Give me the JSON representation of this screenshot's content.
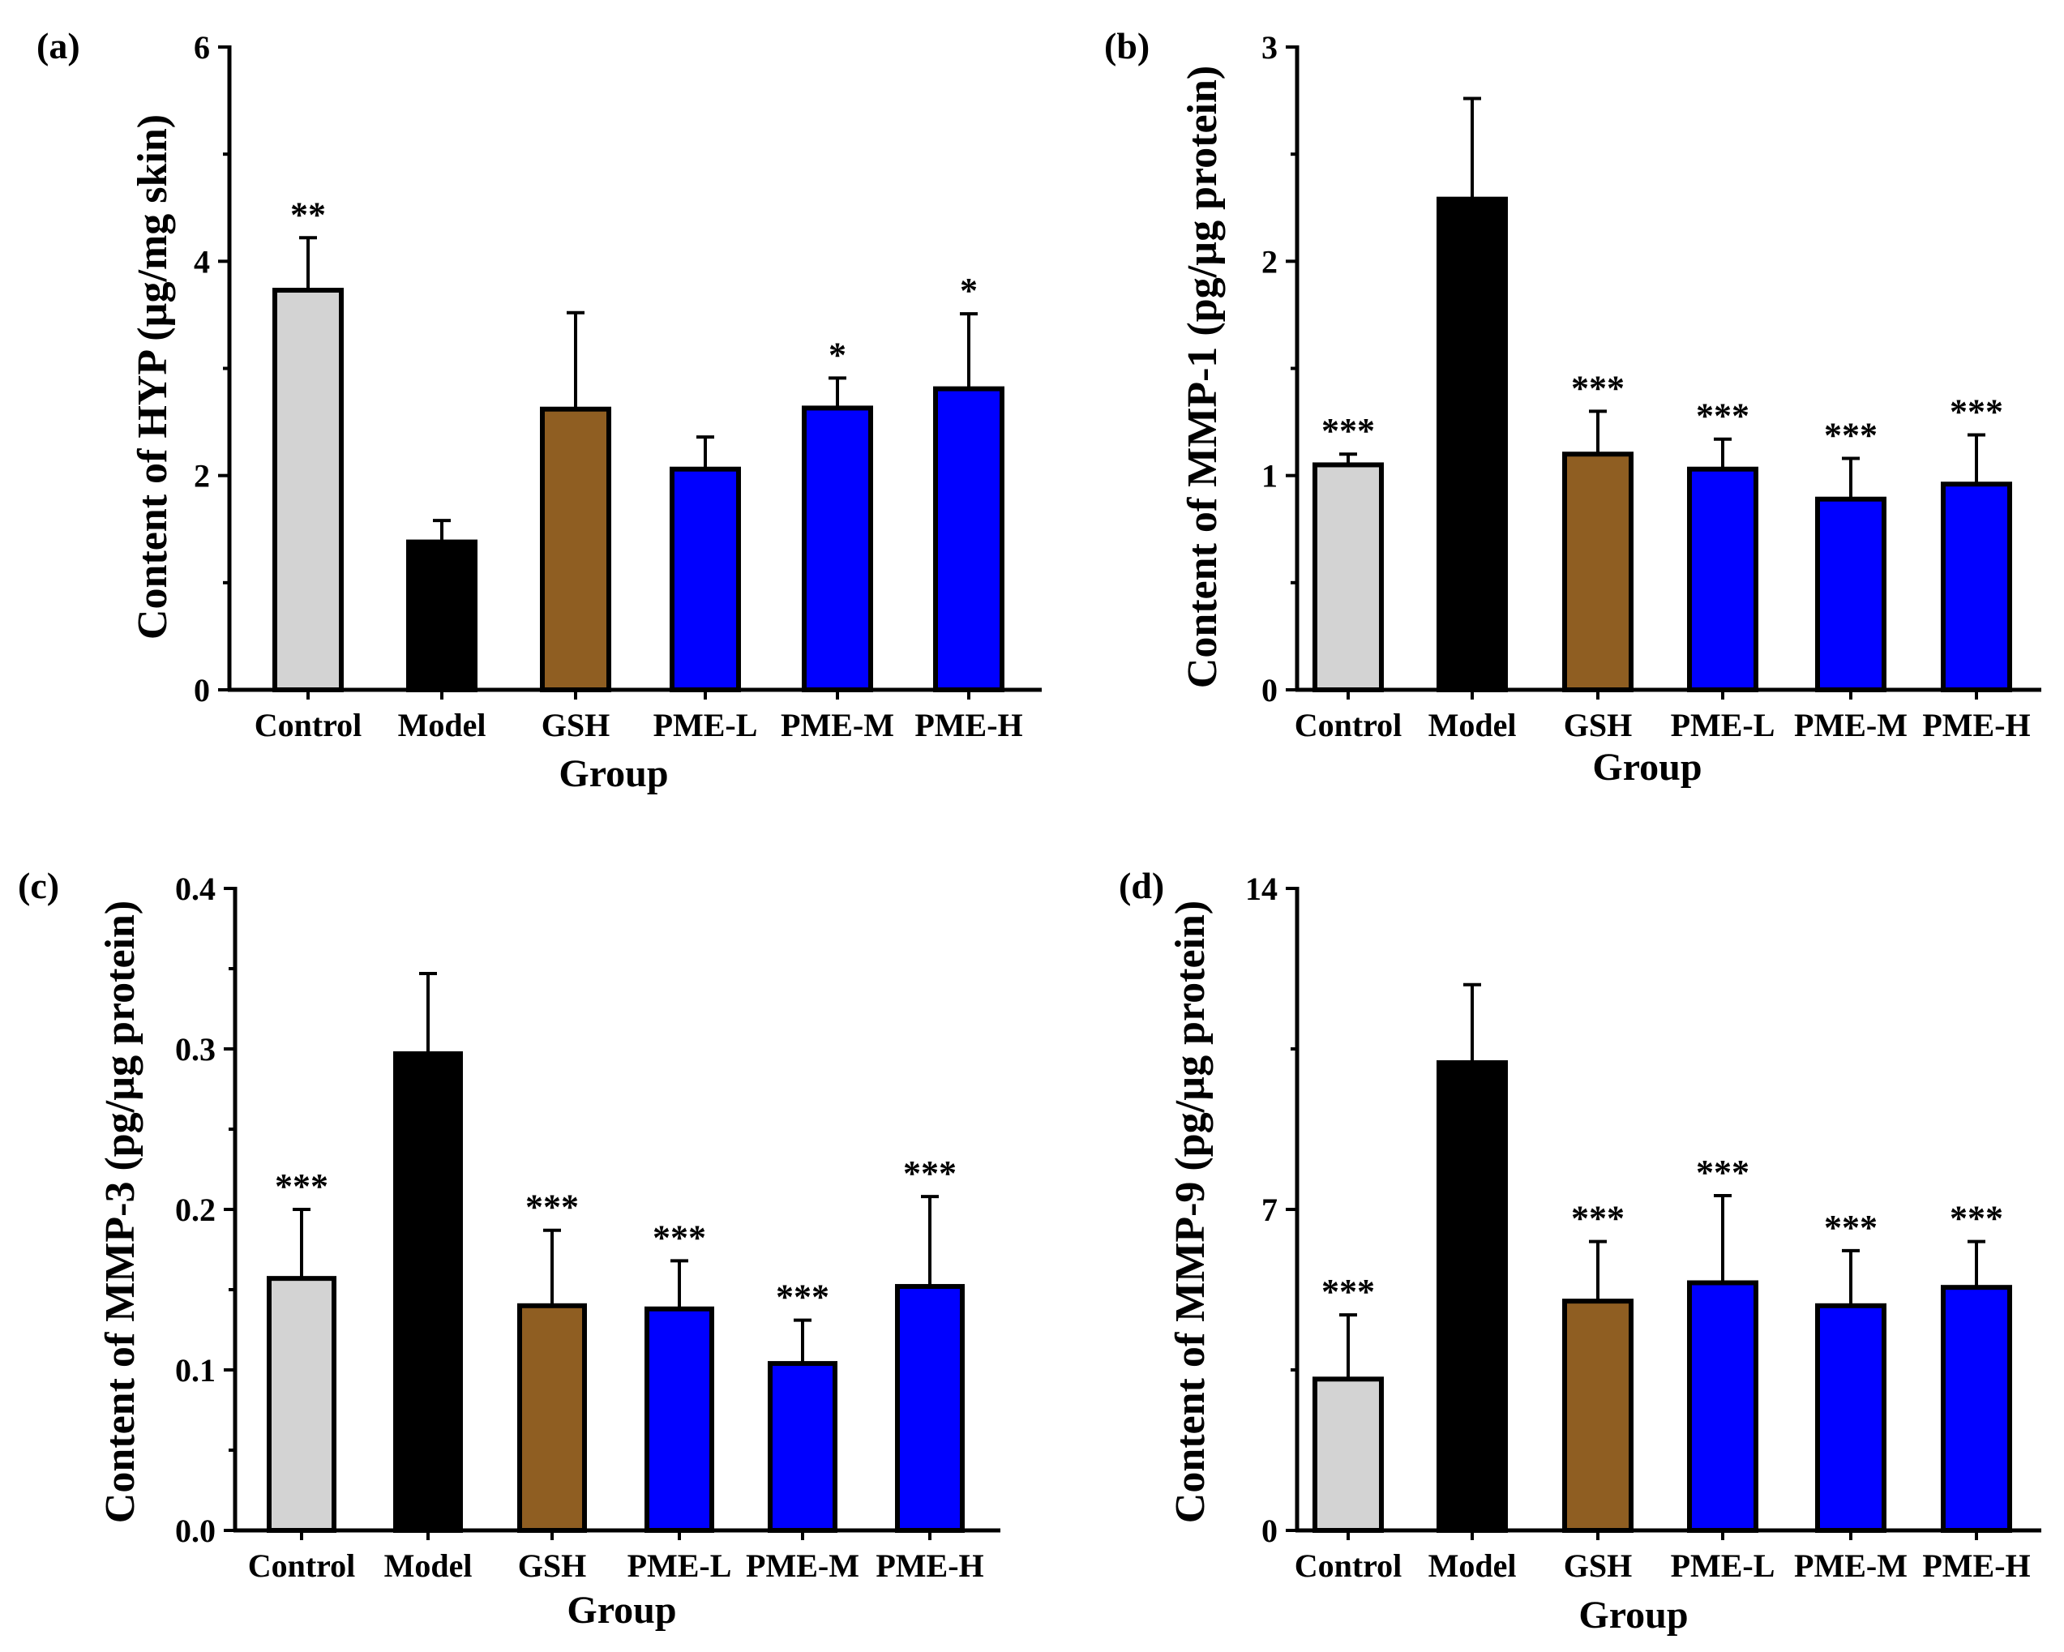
{
  "chart_data": [
    {
      "type": "bar",
      "panel": "(a)",
      "categories": [
        "Control",
        "Model",
        "GSH",
        "PME-L",
        "PME-M",
        "PME-H"
      ],
      "values": [
        3.73,
        1.38,
        2.62,
        2.06,
        2.63,
        2.81
      ],
      "errors": [
        0.49,
        0.2,
        0.9,
        0.3,
        0.28,
        0.7
      ],
      "significance": [
        "**",
        "",
        "",
        "",
        "*",
        "*"
      ],
      "colors": [
        "#d3d3d3",
        "#000000",
        "#8f5e22",
        "#0000ff",
        "#0000ff",
        "#0000ff"
      ],
      "xlabel": "Group",
      "ylabel": "Content of HYP (µg/mg skin)",
      "ylim": [
        0,
        6
      ],
      "yticks": [
        0,
        2,
        4,
        6
      ],
      "ytick_labels": [
        "0",
        "2",
        "4",
        "6"
      ]
    },
    {
      "type": "bar",
      "panel": "(b)",
      "categories": [
        "Control",
        "Model",
        "GSH",
        "PME-L",
        "PME-M",
        "PME-H"
      ],
      "values": [
        1.05,
        2.29,
        1.1,
        1.03,
        0.89,
        0.96
      ],
      "errors": [
        0.05,
        0.47,
        0.2,
        0.14,
        0.19,
        0.23
      ],
      "significance": [
        "***",
        "",
        "***",
        "***",
        "***",
        "***"
      ],
      "colors": [
        "#d3d3d3",
        "#000000",
        "#8f5e22",
        "#0000ff",
        "#0000ff",
        "#0000ff"
      ],
      "xlabel": "Group",
      "ylabel": "Content of MMP-1 (pg/µg protein)",
      "ylim": [
        0,
        3
      ],
      "yticks": [
        0,
        1,
        2,
        3
      ],
      "ytick_labels": [
        "0",
        "1",
        "2",
        "3"
      ]
    },
    {
      "type": "bar",
      "panel": "(c)",
      "categories": [
        "Control",
        "Model",
        "GSH",
        "PME-L",
        "PME-M",
        "PME-H"
      ],
      "values": [
        0.157,
        0.297,
        0.14,
        0.138,
        0.104,
        0.152
      ],
      "errors": [
        0.043,
        0.05,
        0.047,
        0.03,
        0.027,
        0.056
      ],
      "significance": [
        "***",
        "",
        "***",
        "***",
        "***",
        "***"
      ],
      "colors": [
        "#d3d3d3",
        "#000000",
        "#8f5e22",
        "#0000ff",
        "#0000ff",
        "#0000ff"
      ],
      "xlabel": "Group",
      "ylabel": "Content of MMP-3 (pg/µg protein)",
      "ylim": [
        0,
        0.4
      ],
      "yticks": [
        0,
        0.1,
        0.2,
        0.3,
        0.4
      ],
      "ytick_labels": [
        "0.0",
        "0.1",
        "0.2",
        "0.3",
        "0.4"
      ]
    },
    {
      "type": "bar",
      "panel": "(d)",
      "categories": [
        "Control",
        "Model",
        "GSH",
        "PME-L",
        "PME-M",
        "PME-H"
      ],
      "values": [
        3.3,
        10.2,
        5.0,
        5.4,
        4.9,
        5.3
      ],
      "errors": [
        1.4,
        1.7,
        1.3,
        1.9,
        1.2,
        1.0
      ],
      "significance": [
        "***",
        "",
        "***",
        "***",
        "***",
        "***"
      ],
      "colors": [
        "#d3d3d3",
        "#000000",
        "#8f5e22",
        "#0000ff",
        "#0000ff",
        "#0000ff"
      ],
      "xlabel": "Group",
      "ylabel": "Content of MMP-9 (pg/µg protein)",
      "ylim": [
        0,
        14
      ],
      "yticks": [
        0,
        7,
        14
      ],
      "ytick_labels": [
        "0",
        "7",
        "14"
      ]
    }
  ]
}
